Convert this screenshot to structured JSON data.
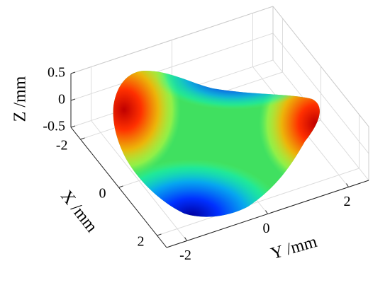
{
  "chart_data": {
    "type": "surface3d",
    "xlabel": "X /mm",
    "ylabel": "Y /mm",
    "zlabel": "Z /mm",
    "xlim": [
      -2.5,
      2.5
    ],
    "ylim": [
      -2.5,
      2.5
    ],
    "zlim": [
      -0.5,
      0.5
    ],
    "xticks": [
      -2,
      0,
      2
    ],
    "yticks": [
      -2,
      0,
      2
    ],
    "zticks": [
      -0.5,
      0,
      0.5
    ],
    "grid": true
  }
}
